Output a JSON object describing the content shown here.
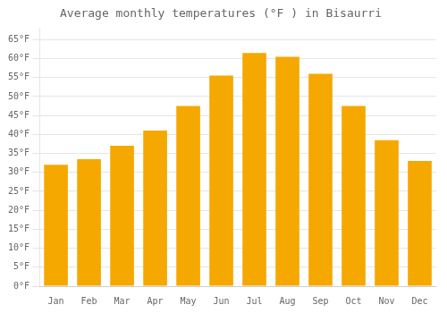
{
  "chart_data": {
    "type": "bar",
    "title": "Average monthly temperatures (°F ) in Bisaurri",
    "categories": [
      "Jan",
      "Feb",
      "Mar",
      "Apr",
      "May",
      "Jun",
      "Jul",
      "Aug",
      "Sep",
      "Oct",
      "Nov",
      "Dec"
    ],
    "values": [
      32,
      33.5,
      37,
      41,
      47.5,
      55.5,
      61.5,
      60.5,
      56,
      47.5,
      38.5,
      33
    ],
    "color": "#F5A800",
    "ylim": [
      0,
      68
    ],
    "yticks": [
      {
        "value": 0,
        "label": "0°F"
      },
      {
        "value": 5,
        "label": "5°F"
      },
      {
        "value": 10,
        "label": "10°F"
      },
      {
        "value": 15,
        "label": "15°F"
      },
      {
        "value": 20,
        "label": "20°F"
      },
      {
        "value": 25,
        "label": "25°F"
      },
      {
        "value": 30,
        "label": "30°F"
      },
      {
        "value": 35,
        "label": "35°F"
      },
      {
        "value": 40,
        "label": "40°F"
      },
      {
        "value": 45,
        "label": "45°F"
      },
      {
        "value": 50,
        "label": "50°F"
      },
      {
        "value": 55,
        "label": "55°F"
      },
      {
        "value": 60,
        "label": "60°F"
      },
      {
        "value": 65,
        "label": "65°F"
      }
    ],
    "grid": true
  }
}
